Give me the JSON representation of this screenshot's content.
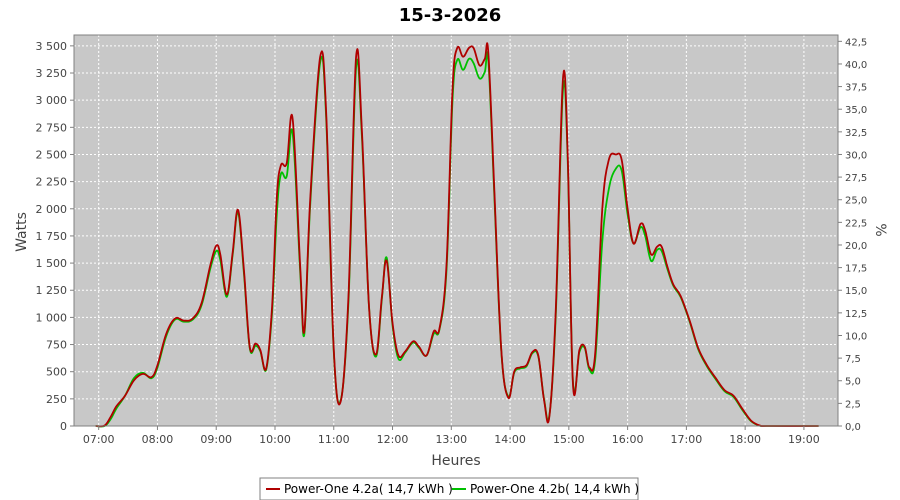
{
  "chart_data": {
    "type": "line",
    "title": "15-3-2026",
    "xlabel": "Heures",
    "ylabel": "Watts",
    "y2label": "%",
    "xlim": [
      6.58,
      19.58
    ],
    "ylim": [
      0,
      3600
    ],
    "y2lim": [
      0,
      43.2
    ],
    "x_ticks": [
      {
        "value": 7,
        "label": "07:00"
      },
      {
        "value": 8,
        "label": "08:00"
      },
      {
        "value": 9,
        "label": "09:00"
      },
      {
        "value": 10,
        "label": "10:00"
      },
      {
        "value": 11,
        "label": "11:00"
      },
      {
        "value": 12,
        "label": "12:00"
      },
      {
        "value": 13,
        "label": "13:00"
      },
      {
        "value": 14,
        "label": "14:00"
      },
      {
        "value": 15,
        "label": "15:00"
      },
      {
        "value": 16,
        "label": "16:00"
      },
      {
        "value": 17,
        "label": "17:00"
      },
      {
        "value": 18,
        "label": "18:00"
      },
      {
        "value": 19,
        "label": "19:00"
      }
    ],
    "y_ticks": [
      {
        "value": 0,
        "label": "0"
      },
      {
        "value": 250,
        "label": "250"
      },
      {
        "value": 500,
        "label": "500"
      },
      {
        "value": 750,
        "label": "750"
      },
      {
        "value": 1000,
        "label": "1 000"
      },
      {
        "value": 1250,
        "label": "1 250"
      },
      {
        "value": 1500,
        "label": "1 500"
      },
      {
        "value": 1750,
        "label": "1 750"
      },
      {
        "value": 2000,
        "label": "2 000"
      },
      {
        "value": 2250,
        "label": "2 250"
      },
      {
        "value": 2500,
        "label": "2 500"
      },
      {
        "value": 2750,
        "label": "2 750"
      },
      {
        "value": 3000,
        "label": "3 000"
      },
      {
        "value": 3250,
        "label": "3 250"
      },
      {
        "value": 3500,
        "label": "3 500"
      }
    ],
    "y2_ticks": [
      {
        "value": 0,
        "label": "0,0"
      },
      {
        "value": 2.5,
        "label": "2,5"
      },
      {
        "value": 5,
        "label": "5,0"
      },
      {
        "value": 7.5,
        "label": "7,5"
      },
      {
        "value": 10,
        "label": "10,0"
      },
      {
        "value": 12.5,
        "label": "12,5"
      },
      {
        "value": 15,
        "label": "15,0"
      },
      {
        "value": 17.5,
        "label": "17,5"
      },
      {
        "value": 20,
        "label": "20,0"
      },
      {
        "value": 22.5,
        "label": "22,5"
      },
      {
        "value": 25,
        "label": "25,0"
      },
      {
        "value": 27.5,
        "label": "27,5"
      },
      {
        "value": 30,
        "label": "30,0"
      },
      {
        "value": 32.5,
        "label": "32,5"
      },
      {
        "value": 35,
        "label": "35,0"
      },
      {
        "value": 37.5,
        "label": "37,5"
      },
      {
        "value": 40,
        "label": "40,0"
      },
      {
        "value": 42.5,
        "label": "42,5"
      }
    ],
    "grid": true,
    "plot_background": "#c8c8c8",
    "legend_position": "bottom",
    "series": [
      {
        "name": "Power-One 4.2a( 14,7 kWh )",
        "color": "#b00000",
        "points": [
          [
            6.95,
            0
          ],
          [
            7.1,
            5
          ],
          [
            7.2,
            80
          ],
          [
            7.3,
            180
          ],
          [
            7.45,
            280
          ],
          [
            7.6,
            420
          ],
          [
            7.75,
            480
          ],
          [
            7.9,
            450
          ],
          [
            8.0,
            560
          ],
          [
            8.15,
            850
          ],
          [
            8.3,
            990
          ],
          [
            8.45,
            970
          ],
          [
            8.6,
            990
          ],
          [
            8.75,
            1130
          ],
          [
            8.9,
            1480
          ],
          [
            9.0,
            1660
          ],
          [
            9.07,
            1580
          ],
          [
            9.18,
            1210
          ],
          [
            9.28,
            1600
          ],
          [
            9.37,
            1990
          ],
          [
            9.47,
            1450
          ],
          [
            9.57,
            730
          ],
          [
            9.67,
            760
          ],
          [
            9.75,
            700
          ],
          [
            9.85,
            530
          ],
          [
            9.95,
            1100
          ],
          [
            10.03,
            2100
          ],
          [
            10.1,
            2400
          ],
          [
            10.2,
            2420
          ],
          [
            10.3,
            2830
          ],
          [
            10.43,
            1450
          ],
          [
            10.5,
            880
          ],
          [
            10.6,
            2100
          ],
          [
            10.77,
            3400
          ],
          [
            10.87,
            2900
          ],
          [
            11.0,
            700
          ],
          [
            11.12,
            230
          ],
          [
            11.25,
            1200
          ],
          [
            11.38,
            3400
          ],
          [
            11.48,
            2700
          ],
          [
            11.6,
            1100
          ],
          [
            11.72,
            660
          ],
          [
            11.82,
            1200
          ],
          [
            11.9,
            1520
          ],
          [
            12.0,
            950
          ],
          [
            12.1,
            650
          ],
          [
            12.22,
            690
          ],
          [
            12.35,
            780
          ],
          [
            12.45,
            730
          ],
          [
            12.58,
            650
          ],
          [
            12.7,
            870
          ],
          [
            12.8,
            900
          ],
          [
            12.92,
            1500
          ],
          [
            13.02,
            3100
          ],
          [
            13.1,
            3480
          ],
          [
            13.2,
            3400
          ],
          [
            13.3,
            3480
          ],
          [
            13.38,
            3480
          ],
          [
            13.48,
            3320
          ],
          [
            13.57,
            3380
          ],
          [
            13.63,
            3440
          ],
          [
            13.73,
            2200
          ],
          [
            13.85,
            700
          ],
          [
            13.97,
            260
          ],
          [
            14.07,
            500
          ],
          [
            14.17,
            540
          ],
          [
            14.28,
            560
          ],
          [
            14.38,
            680
          ],
          [
            14.48,
            650
          ],
          [
            14.58,
            230
          ],
          [
            14.67,
            90
          ],
          [
            14.78,
            1100
          ],
          [
            14.9,
            3200
          ],
          [
            14.98,
            2500
          ],
          [
            15.07,
            380
          ],
          [
            15.18,
            700
          ],
          [
            15.27,
            730
          ],
          [
            15.35,
            540
          ],
          [
            15.45,
            680
          ],
          [
            15.57,
            2000
          ],
          [
            15.68,
            2450
          ],
          [
            15.8,
            2500
          ],
          [
            15.9,
            2450
          ],
          [
            16.0,
            2000
          ],
          [
            16.1,
            1680
          ],
          [
            16.22,
            1860
          ],
          [
            16.3,
            1800
          ],
          [
            16.4,
            1580
          ],
          [
            16.5,
            1650
          ],
          [
            16.58,
            1650
          ],
          [
            16.68,
            1460
          ],
          [
            16.78,
            1300
          ],
          [
            16.9,
            1200
          ],
          [
            17.05,
            980
          ],
          [
            17.2,
            720
          ],
          [
            17.35,
            560
          ],
          [
            17.5,
            440
          ],
          [
            17.65,
            330
          ],
          [
            17.8,
            280
          ],
          [
            17.95,
            160
          ],
          [
            18.1,
            50
          ],
          [
            18.25,
            5
          ],
          [
            18.4,
            0
          ],
          [
            19.25,
            0
          ]
        ]
      },
      {
        "name": "Power-One 4.2b( 14,4 kWh )",
        "color": "#00c000",
        "points": [
          [
            6.95,
            0
          ],
          [
            7.1,
            0
          ],
          [
            7.2,
            60
          ],
          [
            7.3,
            160
          ],
          [
            7.45,
            280
          ],
          [
            7.6,
            440
          ],
          [
            7.75,
            490
          ],
          [
            7.9,
            440
          ],
          [
            8.0,
            540
          ],
          [
            8.15,
            830
          ],
          [
            8.3,
            980
          ],
          [
            8.45,
            960
          ],
          [
            8.6,
            980
          ],
          [
            8.75,
            1110
          ],
          [
            8.9,
            1450
          ],
          [
            9.0,
            1610
          ],
          [
            9.07,
            1530
          ],
          [
            9.18,
            1190
          ],
          [
            9.28,
            1580
          ],
          [
            9.37,
            1970
          ],
          [
            9.47,
            1420
          ],
          [
            9.57,
            720
          ],
          [
            9.67,
            740
          ],
          [
            9.75,
            690
          ],
          [
            9.85,
            520
          ],
          [
            9.95,
            1050
          ],
          [
            10.03,
            1950
          ],
          [
            10.1,
            2320
          ],
          [
            10.2,
            2300
          ],
          [
            10.3,
            2700
          ],
          [
            10.43,
            1400
          ],
          [
            10.5,
            850
          ],
          [
            10.6,
            2050
          ],
          [
            10.77,
            3350
          ],
          [
            10.87,
            2850
          ],
          [
            11.0,
            680
          ],
          [
            11.12,
            240
          ],
          [
            11.25,
            1150
          ],
          [
            11.38,
            3300
          ],
          [
            11.48,
            2650
          ],
          [
            11.6,
            1100
          ],
          [
            11.72,
            640
          ],
          [
            11.82,
            1180
          ],
          [
            11.9,
            1550
          ],
          [
            12.0,
            930
          ],
          [
            12.1,
            620
          ],
          [
            12.22,
            680
          ],
          [
            12.35,
            770
          ],
          [
            12.45,
            720
          ],
          [
            12.58,
            650
          ],
          [
            12.7,
            850
          ],
          [
            12.8,
            890
          ],
          [
            12.92,
            1450
          ],
          [
            13.02,
            3000
          ],
          [
            13.1,
            3370
          ],
          [
            13.2,
            3280
          ],
          [
            13.3,
            3380
          ],
          [
            13.38,
            3340
          ],
          [
            13.48,
            3200
          ],
          [
            13.57,
            3260
          ],
          [
            13.63,
            3370
          ],
          [
            13.73,
            2150
          ],
          [
            13.85,
            690
          ],
          [
            13.97,
            270
          ],
          [
            14.07,
            490
          ],
          [
            14.17,
            530
          ],
          [
            14.28,
            550
          ],
          [
            14.38,
            670
          ],
          [
            14.48,
            640
          ],
          [
            14.58,
            240
          ],
          [
            14.67,
            100
          ],
          [
            14.78,
            1050
          ],
          [
            14.9,
            3100
          ],
          [
            14.98,
            2450
          ],
          [
            15.07,
            400
          ],
          [
            15.18,
            680
          ],
          [
            15.27,
            720
          ],
          [
            15.35,
            520
          ],
          [
            15.45,
            620
          ],
          [
            15.57,
            1700
          ],
          [
            15.68,
            2180
          ],
          [
            15.8,
            2370
          ],
          [
            15.9,
            2350
          ],
          [
            16.0,
            1950
          ],
          [
            16.1,
            1680
          ],
          [
            16.22,
            1830
          ],
          [
            16.3,
            1750
          ],
          [
            16.4,
            1520
          ],
          [
            16.5,
            1620
          ],
          [
            16.58,
            1610
          ],
          [
            16.68,
            1440
          ],
          [
            16.78,
            1290
          ],
          [
            16.9,
            1190
          ],
          [
            17.05,
            970
          ],
          [
            17.2,
            710
          ],
          [
            17.35,
            550
          ],
          [
            17.5,
            430
          ],
          [
            17.65,
            320
          ],
          [
            17.8,
            270
          ],
          [
            17.95,
            150
          ],
          [
            18.1,
            45
          ],
          [
            18.25,
            3
          ],
          [
            18.4,
            0
          ],
          [
            19.25,
            0
          ]
        ]
      }
    ]
  }
}
